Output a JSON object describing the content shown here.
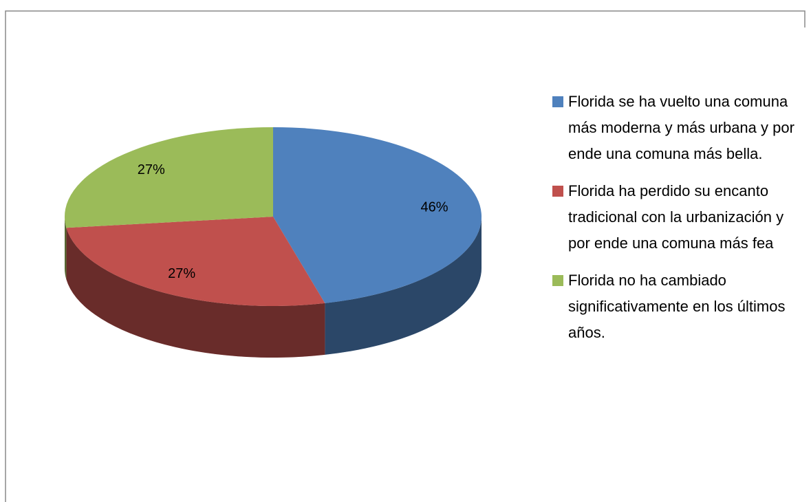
{
  "chart_data": {
    "type": "pie",
    "categories": [
      "Florida se ha vuelto una comuna más moderna y más urbana y por ende una comuna más bella.",
      "Florida ha perdido su encanto tradicional con la urbanización y por ende una comuna más fea",
      "Florida no ha cambiado significativamente en los últimos años."
    ],
    "values": [
      46,
      27,
      27
    ],
    "value_labels": [
      "46%",
      "27%",
      "27%"
    ],
    "colors": [
      "#4f81bd",
      "#c0504d",
      "#9bbb59"
    ],
    "legend": "right"
  }
}
